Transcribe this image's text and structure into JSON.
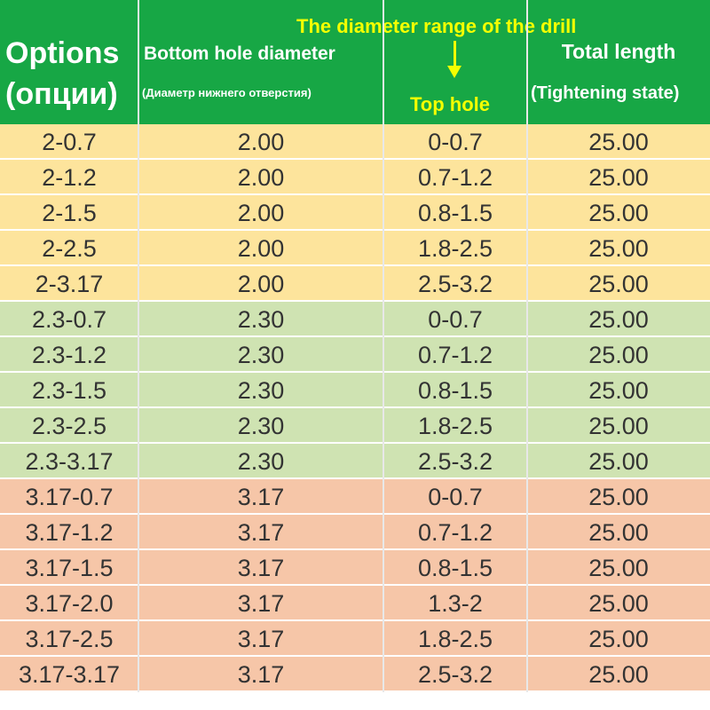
{
  "header": {
    "options_en": "Options",
    "options_ru": "(опции)",
    "bottom_title": "Bottom hole diameter",
    "bottom_sub": "(Диаметр нижнего отверстия)",
    "drill_range": "The diameter range of the drill",
    "top_hole": "Top hole",
    "total_length": "Total length",
    "tightening": "(Tightening state)"
  },
  "colors": {
    "header_bg": "#17a745",
    "header_text": "#ffffff",
    "accent_text": "#f4ff00",
    "yellow_row": "#fde49c",
    "green_row": "#cfe3b2",
    "salmon_row": "#f6c6a8"
  },
  "rows": [
    {
      "group": "yellow",
      "option": "2-0.7",
      "bottom": "2.00",
      "top": "0-0.7",
      "length": "25.00"
    },
    {
      "group": "yellow",
      "option": "2-1.2",
      "bottom": "2.00",
      "top": "0.7-1.2",
      "length": "25.00"
    },
    {
      "group": "yellow",
      "option": "2-1.5",
      "bottom": "2.00",
      "top": "0.8-1.5",
      "length": "25.00"
    },
    {
      "group": "yellow",
      "option": "2-2.5",
      "bottom": "2.00",
      "top": "1.8-2.5",
      "length": "25.00"
    },
    {
      "group": "yellow",
      "option": "2-3.17",
      "bottom": "2.00",
      "top": "2.5-3.2",
      "length": "25.00"
    },
    {
      "group": "green",
      "option": "2.3-0.7",
      "bottom": "2.30",
      "top": "0-0.7",
      "length": "25.00"
    },
    {
      "group": "green",
      "option": "2.3-1.2",
      "bottom": "2.30",
      "top": "0.7-1.2",
      "length": "25.00"
    },
    {
      "group": "green",
      "option": "2.3-1.5",
      "bottom": "2.30",
      "top": "0.8-1.5",
      "length": "25.00"
    },
    {
      "group": "green",
      "option": "2.3-2.5",
      "bottom": "2.30",
      "top": "1.8-2.5",
      "length": "25.00"
    },
    {
      "group": "green",
      "option": "2.3-3.17",
      "bottom": "2.30",
      "top": "2.5-3.2",
      "length": "25.00"
    },
    {
      "group": "salmon",
      "option": "3.17-0.7",
      "bottom": "3.17",
      "top": "0-0.7",
      "length": "25.00"
    },
    {
      "group": "salmon",
      "option": "3.17-1.2",
      "bottom": "3.17",
      "top": "0.7-1.2",
      "length": "25.00"
    },
    {
      "group": "salmon",
      "option": "3.17-1.5",
      "bottom": "3.17",
      "top": "0.8-1.5",
      "length": "25.00"
    },
    {
      "group": "salmon",
      "option": "3.17-2.0",
      "bottom": "3.17",
      "top": "1.3-2",
      "length": "25.00"
    },
    {
      "group": "salmon",
      "option": "3.17-2.5",
      "bottom": "3.17",
      "top": "1.8-2.5",
      "length": "25.00"
    },
    {
      "group": "salmon",
      "option": "3.17-3.17",
      "bottom": "3.17",
      "top": "2.5-3.2",
      "length": "25.00"
    }
  ]
}
